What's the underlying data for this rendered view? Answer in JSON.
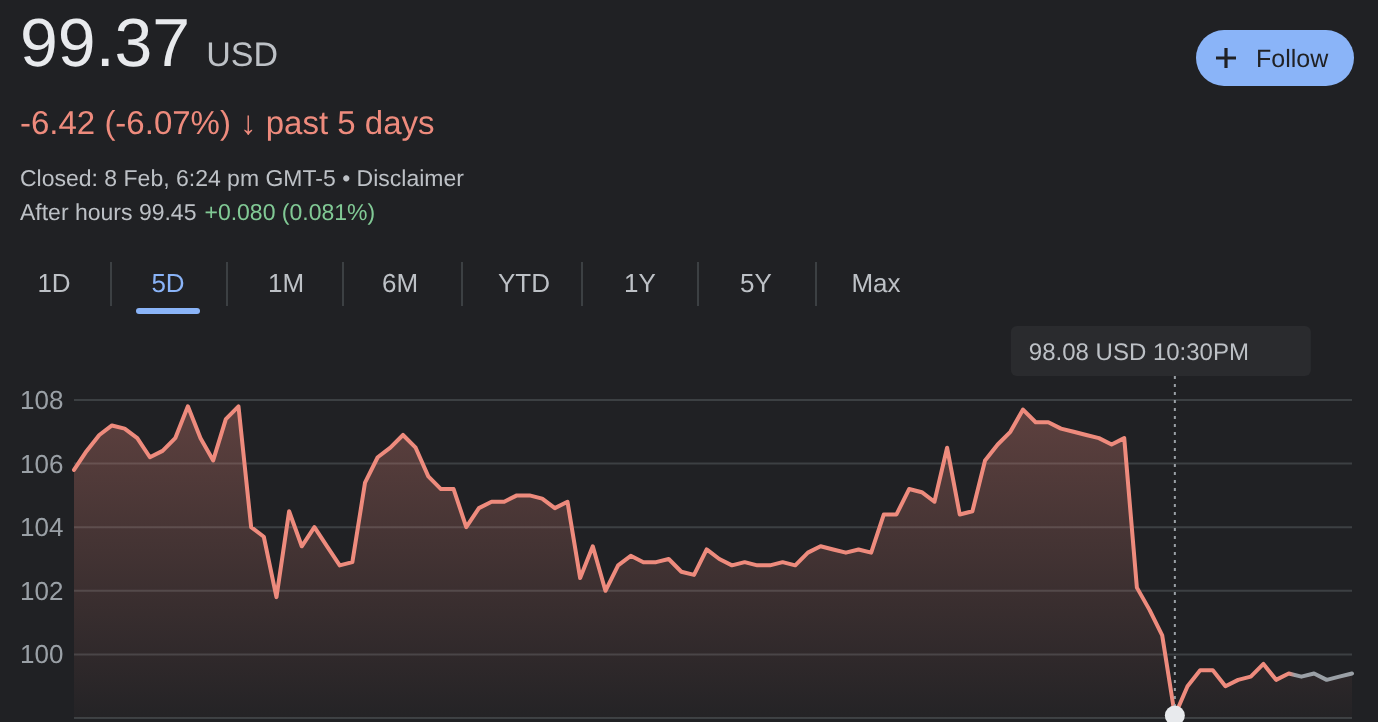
{
  "chart_data": {
    "type": "area",
    "title": "99.37 USD",
    "subtitle": "-6.42 (-6.07%) ↓ past 5 days",
    "annotations": [
      "Closed: 8 Feb, 6:24 pm GMT-5 • Disclaimer",
      "After hours 99.45",
      "+0.080 (0.081%)",
      "Follow",
      "1D",
      "5D",
      "1M",
      "6M",
      "YTD",
      "1Y",
      "5Y",
      "Max",
      "98.08 USD 10:30PM"
    ],
    "categories": [
      null,
      null,
      null,
      null,
      null,
      null,
      null,
      null,
      null,
      null,
      null,
      null,
      null,
      null,
      null,
      null,
      null,
      null,
      null,
      null,
      null,
      null,
      null,
      null,
      null,
      null,
      null,
      null,
      null,
      null,
      null,
      null,
      null,
      null,
      null,
      null,
      null,
      null,
      null,
      null,
      null,
      null,
      null,
      null,
      null,
      null,
      null,
      null,
      null,
      null,
      null,
      null,
      null,
      null,
      null,
      null,
      null,
      null,
      null,
      null,
      null,
      null,
      null,
      null,
      null,
      null,
      null,
      null,
      null,
      null,
      null,
      null,
      null,
      null,
      null,
      null,
      null,
      null,
      null,
      null,
      null,
      null,
      null,
      null,
      null,
      null,
      null,
      null,
      null,
      null,
      null,
      null,
      null,
      null,
      null,
      null,
      null,
      null,
      null,
      null,
      null,
      null
    ],
    "series": [
      {
        "color": "#ee8b7d",
        "values": [
          105.8,
          106.4,
          106.9,
          107.2,
          107.1,
          106.8,
          106.2,
          106.4,
          106.8,
          107.8,
          106.8,
          106.1,
          107.4,
          107.8,
          104.0,
          103.7,
          101.8,
          104.5,
          103.4,
          104.0,
          103.4,
          102.8,
          102.9,
          105.4,
          106.2,
          106.5,
          106.9,
          106.5,
          105.6,
          105.2,
          105.2,
          104.0,
          104.6,
          104.8,
          104.8,
          105.0,
          105.0,
          104.9,
          104.6,
          104.8,
          102.4,
          103.4,
          102.0,
          102.8,
          103.1,
          102.9,
          102.9,
          103.0,
          102.6,
          102.5,
          103.3,
          103.0,
          102.8,
          102.9,
          102.8,
          102.8,
          102.9,
          102.8,
          103.2,
          103.4,
          103.3,
          103.2,
          103.3,
          103.2,
          104.4,
          104.4,
          105.2,
          105.1,
          104.8,
          106.5,
          104.4,
          104.5,
          106.1,
          106.6,
          107.0,
          107.7,
          107.3,
          107.3,
          107.1,
          107.0,
          106.9,
          106.8,
          106.6,
          106.8,
          102.1,
          101.4,
          100.6,
          98.08,
          99.0,
          99.5,
          99.5,
          99.0,
          99.2,
          99.3,
          99.7,
          99.2,
          99.4,
          99.3,
          99.4,
          99.2,
          99.3,
          99.4
        ]
      }
    ],
    "colors": [
      "#ee8b7d",
      "#ee8b7d",
      "#ee8b7d",
      "#ee8b7d",
      "#ee8b7d",
      "#ee8b7d",
      "#ee8b7d",
      "#ee8b7d",
      "#ee8b7d",
      "#ee8b7d",
      "#ee8b7d",
      "#ee8b7d",
      "#ee8b7d",
      "#ee8b7d",
      "#ee8b7d",
      "#ee8b7d",
      "#ee8b7d",
      "#ee8b7d",
      "#ee8b7d",
      "#ee8b7d",
      "#ee8b7d",
      "#ee8b7d",
      "#ee8b7d",
      "#ee8b7d",
      "#ee8b7d",
      "#ee8b7d",
      "#ee8b7d",
      "#ee8b7d",
      "#ee8b7d",
      "#ee8b7d",
      "#ee8b7d",
      "#ee8b7d",
      "#ee8b7d",
      "#ee8b7d",
      "#ee8b7d",
      "#ee8b7d",
      "#ee8b7d",
      "#ee8b7d",
      "#ee8b7d",
      "#ee8b7d",
      "#ee8b7d",
      "#ee8b7d",
      "#ee8b7d",
      "#ee8b7d",
      "#ee8b7d",
      "#ee8b7d",
      "#ee8b7d",
      "#ee8b7d",
      "#ee8b7d",
      "#ee8b7d",
      "#ee8b7d",
      "#ee8b7d",
      "#ee8b7d",
      "#ee8b7d",
      "#ee8b7d",
      "#ee8b7d",
      "#ee8b7d",
      "#ee8b7d",
      "#ee8b7d",
      "#ee8b7d",
      "#ee8b7d",
      "#ee8b7d",
      "#ee8b7d",
      "#ee8b7d",
      "#ee8b7d",
      "#ee8b7d",
      "#ee8b7d",
      "#ee8b7d",
      "#ee8b7d",
      "#ee8b7d",
      "#ee8b7d",
      "#ee8b7d",
      "#ee8b7d",
      "#ee8b7d",
      "#ee8b7d",
      "#ee8b7d",
      "#ee8b7d",
      "#ee8b7d",
      "#ee8b7d",
      "#ee8b7d",
      "#ee8b7d",
      "#ee8b7d",
      "#ee8b7d",
      "#ee8b7d",
      "#ee8b7d",
      "#ee8b7d",
      "#ee8b7d",
      "#ee8b7d",
      "#ee8b7d",
      "#ee8b7d",
      "#ee8b7d",
      "#ee8b7d",
      "#ee8b7d",
      "#ee8b7d",
      "#ee8b7d",
      "#ee8b7d",
      "#ee8b7d",
      "#9aa0a6",
      "#9aa0a6",
      "#9aa0a6",
      "#9aa0a6",
      "#9aa0a6"
    ],
    "ylim": [
      98,
      108
    ],
    "yticks": [
      100,
      102,
      104,
      106,
      108
    ],
    "grid": true
  }
}
